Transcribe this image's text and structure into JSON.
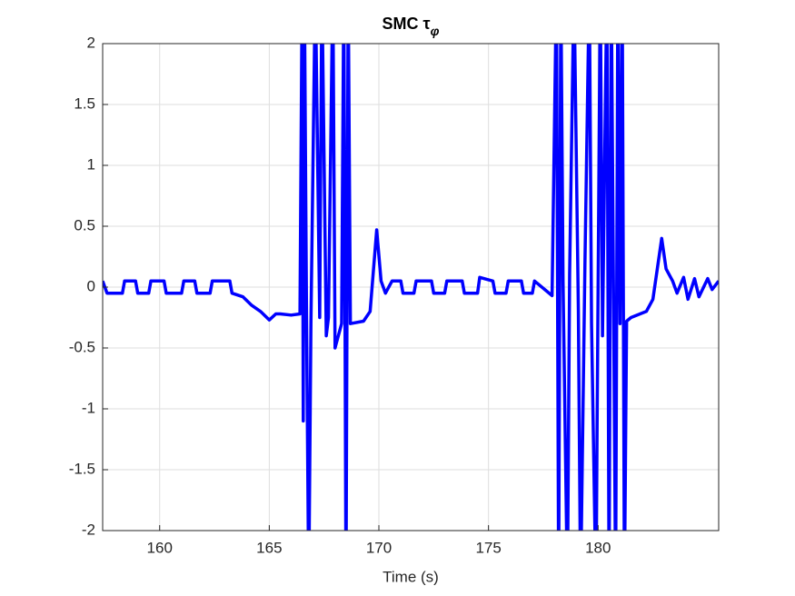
{
  "chart_data": {
    "type": "line",
    "title": "SMC τ",
    "title_subscript": "φ",
    "xlabel": "Time (s)",
    "x": [
      157.4,
      157.6,
      157.7,
      158.3,
      158.4,
      158.9,
      159.0,
      159.5,
      159.6,
      160.2,
      160.3,
      161.0,
      161.1,
      161.6,
      161.7,
      162.3,
      162.4,
      163.2,
      163.3,
      163.8,
      164.2,
      164.6,
      165.0,
      165.3,
      165.5,
      166.0,
      166.4,
      166.5,
      166.55,
      166.6,
      166.7,
      166.8,
      166.9,
      167.1,
      167.3,
      167.4,
      167.6,
      167.7,
      167.9,
      168.0,
      168.3,
      168.4,
      168.5,
      168.6,
      168.7,
      169.3,
      169.6,
      169.9,
      170.1,
      170.3,
      170.6,
      171.0,
      171.1,
      171.6,
      171.7,
      172.4,
      172.5,
      173.0,
      173.1,
      173.8,
      173.9,
      174.5,
      174.6,
      175.2,
      175.3,
      175.8,
      175.9,
      176.5,
      176.6,
      177.0,
      177.1,
      177.9,
      178.1,
      178.2,
      178.3,
      178.4,
      178.6,
      178.7,
      178.9,
      179.1,
      179.2,
      179.4,
      179.6,
      179.7,
      179.9,
      180.1,
      180.2,
      180.4,
      180.5,
      180.6,
      180.8,
      180.9,
      181.0,
      181.1,
      181.2,
      181.3,
      181.5,
      182.2,
      182.5,
      182.9,
      183.1,
      183.4,
      183.6,
      183.9,
      184.1,
      184.4,
      184.6,
      185.0,
      185.2,
      185.5
    ],
    "series": [
      {
        "color": "#0000ff",
        "values": [
          0.05,
          -0.05,
          -0.05,
          -0.05,
          0.05,
          0.05,
          -0.05,
          -0.05,
          0.05,
          0.05,
          -0.05,
          -0.05,
          0.05,
          0.05,
          -0.05,
          -0.05,
          0.05,
          0.05,
          -0.05,
          -0.08,
          -0.15,
          -0.2,
          -0.27,
          -0.22,
          -0.22,
          -0.23,
          -0.22,
          2.5,
          -1.1,
          2.5,
          -0.25,
          -2.5,
          -0.3,
          2.5,
          -0.25,
          2.5,
          -0.4,
          -0.25,
          2.5,
          -0.5,
          -0.3,
          2.5,
          -2.5,
          2.5,
          -0.3,
          -0.28,
          -0.2,
          0.47,
          0.05,
          -0.05,
          0.05,
          0.05,
          -0.05,
          -0.05,
          0.05,
          0.05,
          -0.05,
          -0.05,
          0.05,
          0.05,
          -0.05,
          -0.05,
          0.08,
          0.05,
          -0.05,
          -0.05,
          0.05,
          0.05,
          -0.05,
          -0.05,
          0.05,
          -0.07,
          2.5,
          -2.5,
          2.5,
          0.05,
          -2.5,
          0.1,
          2.5,
          -0.2,
          -2.5,
          0.2,
          2.5,
          -0.3,
          -2.5,
          2.5,
          -0.4,
          2.5,
          -2.5,
          2.5,
          -2.5,
          2.5,
          -0.3,
          2.5,
          -2.5,
          -0.28,
          -0.25,
          -0.2,
          -0.1,
          0.4,
          0.15,
          0.05,
          -0.05,
          0.08,
          -0.1,
          0.07,
          -0.08,
          0.07,
          -0.02,
          0.05
        ]
      }
    ],
    "xlim": [
      157.4,
      185.5
    ],
    "xticks": [
      160,
      165,
      170,
      175,
      180
    ],
    "ylim": [
      -2,
      2
    ],
    "yticks": [
      -2,
      -1.5,
      -1,
      -0.5,
      0,
      0.5,
      1,
      1.5,
      2
    ],
    "grid": true
  }
}
